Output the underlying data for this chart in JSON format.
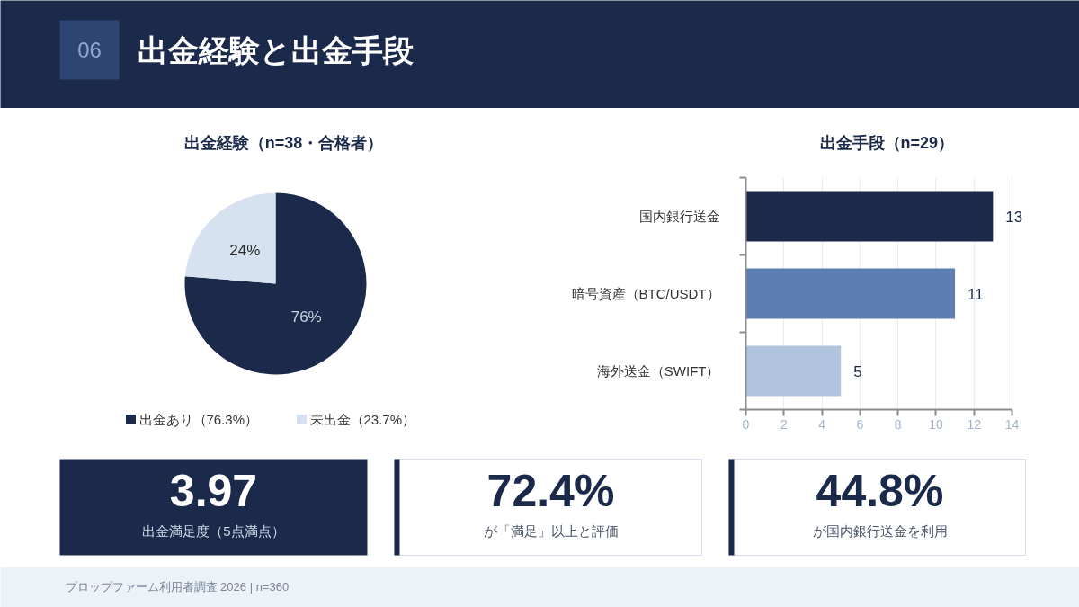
{
  "chart_data": [
    {
      "type": "other",
      "title": "出金経験と出金手段",
      "annotations": [
        "06"
      ]
    },
    {
      "type": "pie",
      "title": "出金経験（n=38・合格者）",
      "categories": [
        "出金あり（76.3%）",
        "未出金（23.7%）"
      ],
      "values": [
        76.3,
        23.7
      ],
      "colors": [
        "#1b2a4a",
        "#d6e2ef"
      ],
      "value_labels": [
        "76%",
        "24%"
      ],
      "legend": "bottom"
    },
    {
      "type": "bar",
      "orientation": "horizontal",
      "title": "出金手段（n=29）",
      "categories": [
        "国内銀行送金",
        "暗号資産（BTC/USDT）",
        "海外送金（SWIFT）"
      ],
      "values": [
        13,
        11,
        5
      ],
      "colors": [
        "#1b2a4a",
        "#5b7db1",
        "#b0c4de"
      ],
      "xlim": [
        0,
        14
      ],
      "xticks": [
        0,
        2,
        4,
        6,
        8,
        10,
        12,
        14
      ],
      "grid": "x",
      "data_labels": true
    },
    {
      "type": "other",
      "title": "3.97",
      "subtitle": "出金満足度（5点満点）"
    },
    {
      "type": "other",
      "title": "72.4%",
      "subtitle": "が「満足」以上と評価"
    },
    {
      "type": "other",
      "title": "44.8%",
      "subtitle": "が国内銀行送金を利用"
    },
    {
      "type": "other",
      "annotations": [
        "プロップファーム利用者調査 2026 | n=360"
      ]
    }
  ]
}
